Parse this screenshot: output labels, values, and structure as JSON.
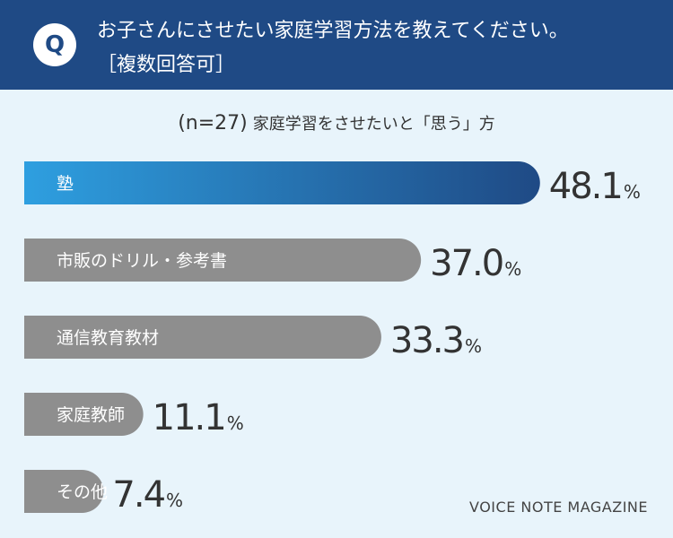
{
  "header": {
    "badge": "Q",
    "question": "お子さんにさせたい家庭学習方法を教えてください。",
    "note": "［複数回答可］"
  },
  "chart_data": {
    "type": "bar",
    "orientation": "horizontal",
    "subtitle_n": "(n=27)",
    "subtitle_text": "家庭学習をさせたいと「思う」方",
    "categories": [
      "塾",
      "市販のドリル・参考書",
      "通信教育教材",
      "家庭教師",
      "その他"
    ],
    "values": [
      48.1,
      37.0,
      33.3,
      11.1,
      7.4
    ],
    "value_labels": [
      "48.1",
      "37.0",
      "33.3",
      "11.1",
      "7.4"
    ],
    "unit": "%",
    "highlight_index": 0,
    "colors": {
      "highlight_start": "#2e9fe0",
      "highlight_end": "#1f4a85",
      "bar": "#8e8e8e"
    },
    "grid": false,
    "legend": "none"
  },
  "footer": {
    "watermark": "VOICE NOTE MAGAZINE"
  }
}
